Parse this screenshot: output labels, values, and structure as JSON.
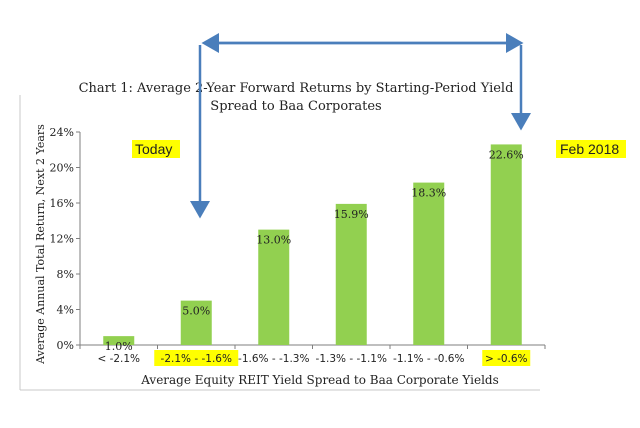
{
  "chart_data": {
    "type": "bar",
    "title_line1": "Chart 1: Average 2-Year Forward Returns by Starting-Period Yield",
    "title_line2": "Spread to Baa Corporates",
    "xlabel": "Average Equity REIT Yield Spread to Baa Corporate Yields",
    "ylabel": "Average Annual Total Return, Next 2 Years",
    "ylim": [
      0,
      24
    ],
    "yticks": [
      "0%",
      "4%",
      "8%",
      "12%",
      "16%",
      "20%",
      "24%"
    ],
    "categories": [
      "< -2.1%",
      "-2.1% - -1.6%",
      "-1.6% - -1.3%",
      "-1.3% - -1.1%",
      "-1.1% - -0.6%",
      "> -0.6%"
    ],
    "values": [
      1.0,
      5.0,
      13.0,
      15.9,
      18.3,
      22.6
    ],
    "data_labels": [
      "1.0%",
      "5.0%",
      "13.0%",
      "15.9%",
      "18.3%",
      "22.6%"
    ],
    "highlighted_categories": [
      1,
      5
    ],
    "grid": false,
    "colors": {
      "bar": "#92d050",
      "arrow": "#4a7ebb",
      "highlight": "#ffff00",
      "axis": "#7f7f7f",
      "text": "#222222"
    }
  },
  "annotations": {
    "today": "Today",
    "feb_2018": "Feb 2018"
  }
}
